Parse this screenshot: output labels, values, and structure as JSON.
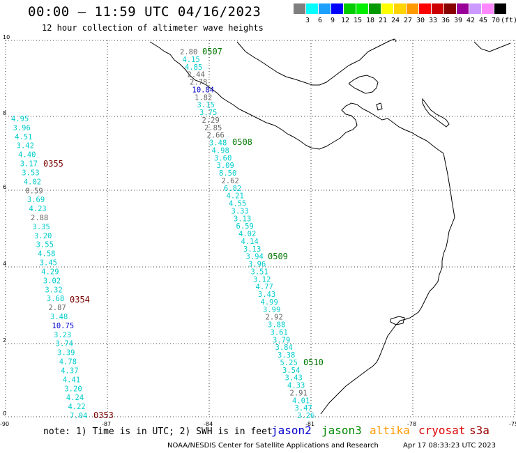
{
  "header": {
    "title": "00:00 – 11:59 UTC 04/16/2023",
    "subtitle": "12 hour collection of altimeter wave heights"
  },
  "legend": {
    "unit_label": "(ft)",
    "bins": [
      {
        "label": "3",
        "color": "#7f7f7f"
      },
      {
        "label": "6",
        "color": "#00ffff"
      },
      {
        "label": "9",
        "color": "#1ea0ff"
      },
      {
        "label": "12",
        "color": "#0000ff"
      },
      {
        "label": "15",
        "color": "#00cc00"
      },
      {
        "label": "18",
        "color": "#00ee00"
      },
      {
        "label": "21",
        "color": "#009900"
      },
      {
        "label": "24",
        "color": "#ffff00"
      },
      {
        "label": "27",
        "color": "#ffd400"
      },
      {
        "label": "30",
        "color": "#ff9900"
      },
      {
        "label": "33",
        "color": "#ff0000"
      },
      {
        "label": "36",
        "color": "#cc0000"
      },
      {
        "label": "39",
        "color": "#880000"
      },
      {
        "label": "42",
        "color": "#990099"
      },
      {
        "label": "45",
        "color": "#cc99ff"
      },
      {
        "label": "70",
        "color": "#ff88ff"
      },
      {
        "label": "",
        "color": "#000000"
      }
    ]
  },
  "axes": {
    "x_ticks": [
      "-90",
      "-87",
      "-84",
      "-81",
      "-78",
      "-75"
    ],
    "y_ticks": [
      "0",
      "2",
      "4",
      "6",
      "8",
      "10"
    ]
  },
  "tracks": [
    {
      "name": "track-west",
      "times": [
        {
          "label": "0355",
          "color": "#7a0000"
        },
        {
          "label": "0354",
          "color": "#7a0000"
        },
        {
          "label": "0353",
          "color": "#7a0000"
        }
      ],
      "values": [
        {
          "v": "4.95",
          "c": "#00cccc"
        },
        {
          "v": "3.96",
          "c": "#00cccc"
        },
        {
          "v": "4.51",
          "c": "#00cccc"
        },
        {
          "v": "3.42",
          "c": "#00cccc"
        },
        {
          "v": "4.40",
          "c": "#00cccc"
        },
        {
          "v": "3.17",
          "c": "#00cccc"
        },
        {
          "v": "3.53",
          "c": "#00cccc"
        },
        {
          "v": "4.02",
          "c": "#00cccc"
        },
        {
          "v": "0.59",
          "c": "#666666"
        },
        {
          "v": "3.69",
          "c": "#00cccc"
        },
        {
          "v": "4.23",
          "c": "#00cccc"
        },
        {
          "v": "2.88",
          "c": "#666666"
        },
        {
          "v": "3.35",
          "c": "#00cccc"
        },
        {
          "v": "3.20",
          "c": "#00cccc"
        },
        {
          "v": "3.55",
          "c": "#00cccc"
        },
        {
          "v": "4.58",
          "c": "#00cccc"
        },
        {
          "v": "3.45",
          "c": "#00cccc"
        },
        {
          "v": "4.29",
          "c": "#00cccc"
        },
        {
          "v": "3.02",
          "c": "#00cccc"
        },
        {
          "v": "3.32",
          "c": "#00cccc"
        },
        {
          "v": "3.68",
          "c": "#00cccc"
        },
        {
          "v": "2.87",
          "c": "#666666"
        },
        {
          "v": "3.48",
          "c": "#00cccc"
        },
        {
          "v": "10.75",
          "c": "#0000cc"
        },
        {
          "v": "3.23",
          "c": "#00cccc"
        },
        {
          "v": "3.74",
          "c": "#00cccc"
        },
        {
          "v": "3.39",
          "c": "#00cccc"
        },
        {
          "v": "4.78",
          "c": "#00cccc"
        },
        {
          "v": "4.37",
          "c": "#00cccc"
        },
        {
          "v": "4.41",
          "c": "#00cccc"
        },
        {
          "v": "3.20",
          "c": "#00cccc"
        },
        {
          "v": "4.24",
          "c": "#00cccc"
        },
        {
          "v": "4.22",
          "c": "#00cccc"
        },
        {
          "v": "7.04",
          "c": "#00cccc"
        }
      ]
    },
    {
      "name": "track-east",
      "times": [
        {
          "label": "0507",
          "color": "#007700"
        },
        {
          "label": "0508",
          "color": "#007700"
        },
        {
          "label": "0509",
          "color": "#007700"
        },
        {
          "label": "0510",
          "color": "#007700"
        }
      ],
      "values": [
        {
          "v": "2.80",
          "c": "#666666"
        },
        {
          "v": "4.15",
          "c": "#00cccc"
        },
        {
          "v": "4.85",
          "c": "#00cccc"
        },
        {
          "v": "2.44",
          "c": "#666666"
        },
        {
          "v": "2.78",
          "c": "#666666"
        },
        {
          "v": "10.84",
          "c": "#0000cc"
        },
        {
          "v": "1.82",
          "c": "#666666"
        },
        {
          "v": "3.15",
          "c": "#00cccc"
        },
        {
          "v": "3.75",
          "c": "#00cccc"
        },
        {
          "v": "2.29",
          "c": "#666666"
        },
        {
          "v": "2.85",
          "c": "#666666"
        },
        {
          "v": "2.66",
          "c": "#666666"
        },
        {
          "v": "3.48",
          "c": "#00cccc"
        },
        {
          "v": "4.98",
          "c": "#00cccc"
        },
        {
          "v": "3.60",
          "c": "#00cccc"
        },
        {
          "v": "3.09",
          "c": "#00cccc"
        },
        {
          "v": "8.50",
          "c": "#00cccc"
        },
        {
          "v": "2.62",
          "c": "#666666"
        },
        {
          "v": "6.82",
          "c": "#00cccc"
        },
        {
          "v": "4.21",
          "c": "#00cccc"
        },
        {
          "v": "4.55",
          "c": "#00cccc"
        },
        {
          "v": "3.33",
          "c": "#00cccc"
        },
        {
          "v": "3.13",
          "c": "#00cccc"
        },
        {
          "v": "6.59",
          "c": "#00cccc"
        },
        {
          "v": "4.02",
          "c": "#00cccc"
        },
        {
          "v": "4.14",
          "c": "#00cccc"
        },
        {
          "v": "3.13",
          "c": "#00cccc"
        },
        {
          "v": "3.94",
          "c": "#00cccc"
        },
        {
          "v": "3.96",
          "c": "#00cccc"
        },
        {
          "v": "3.51",
          "c": "#00cccc"
        },
        {
          "v": "3.12",
          "c": "#00cccc"
        },
        {
          "v": "4.77",
          "c": "#00cccc"
        },
        {
          "v": "3.43",
          "c": "#00cccc"
        },
        {
          "v": "4.99",
          "c": "#00cccc"
        },
        {
          "v": "3.99",
          "c": "#00cccc"
        },
        {
          "v": "2.92",
          "c": "#666666"
        },
        {
          "v": "3.88",
          "c": "#00cccc"
        },
        {
          "v": "3.61",
          "c": "#00cccc"
        },
        {
          "v": "3.79",
          "c": "#00cccc"
        },
        {
          "v": "3.84",
          "c": "#00cccc"
        },
        {
          "v": "3.38",
          "c": "#00cccc"
        },
        {
          "v": "5.25",
          "c": "#00cccc"
        },
        {
          "v": "3.54",
          "c": "#00cccc"
        },
        {
          "v": "3.43",
          "c": "#00cccc"
        },
        {
          "v": "4.33",
          "c": "#00cccc"
        },
        {
          "v": "2.91",
          "c": "#666666"
        },
        {
          "v": "4.01",
          "c": "#00cccc"
        },
        {
          "v": "3.47",
          "c": "#00cccc"
        },
        {
          "v": "3.26",
          "c": "#00cccc"
        }
      ]
    }
  ],
  "footer": {
    "note": "note: 1) Time is in UTC; 2) SWH is in feet",
    "satellites": [
      {
        "label": "jason2",
        "color": "#0000cc"
      },
      {
        "label": "jason3",
        "color": "#008800"
      },
      {
        "label": "altika",
        "color": "#ff9900"
      },
      {
        "label": "cryosat",
        "color": "#dd0000"
      },
      {
        "label": "s3a",
        "color": "#990000"
      }
    ],
    "credit": "NOAA/NESDIS Center for Satellite Applications and Research",
    "timestamp": "Apr 17 08:33:23 UTC 2023"
  }
}
